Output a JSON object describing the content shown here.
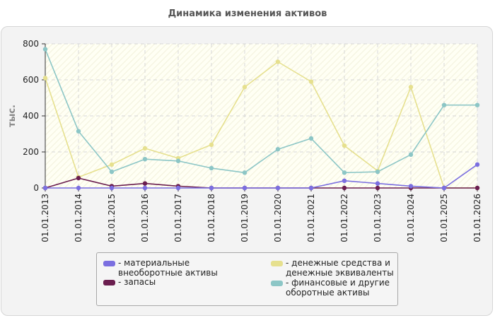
{
  "chart_data": {
    "type": "line",
    "title": "Динамика изменения активов",
    "ylabel": "тыс.",
    "xlabel": "",
    "ylim": [
      0,
      800
    ],
    "yticks": [
      0,
      200,
      400,
      600,
      800
    ],
    "grid": true,
    "legend_position": "bottom",
    "categories": [
      "01.01.2013",
      "01.01.2014",
      "01.01.2015",
      "01.01.2016",
      "01.01.2017",
      "01.01.2018",
      "01.01.2019",
      "01.01.2020",
      "01.01.2021",
      "01.01.2022",
      "01.01.2023",
      "01.01.2024",
      "01.01.2025",
      "01.01.2026"
    ],
    "series": [
      {
        "name": "материальные внеоборотные активы",
        "color": "#7b6fe0",
        "values": [
          0,
          0,
          0,
          0,
          0,
          0,
          0,
          0,
          0,
          40,
          25,
          10,
          0,
          130
        ]
      },
      {
        "name": "запасы",
        "color": "#6b1e4f",
        "values": [
          0,
          55,
          10,
          25,
          10,
          0,
          0,
          0,
          0,
          0,
          0,
          0,
          0,
          0
        ]
      },
      {
        "name": "денежные средства и денежные эквиваленты",
        "color": "#e6e08e",
        "values": [
          610,
          60,
          130,
          220,
          165,
          240,
          560,
          700,
          590,
          235,
          95,
          560,
          0,
          0
        ]
      },
      {
        "name": "финансовые и другие оборотные активы",
        "color": "#8cc6c6",
        "values": [
          770,
          315,
          90,
          160,
          150,
          110,
          85,
          215,
          275,
          85,
          90,
          185,
          460,
          460
        ]
      }
    ]
  }
}
